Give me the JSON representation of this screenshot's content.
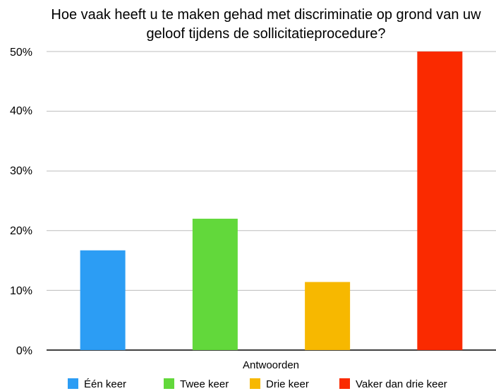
{
  "chart_data": {
    "type": "bar",
    "title_lines": [
      "Hoe vaak heeft u te maken gehad met discriminatie op grond van uw",
      "geloof tijdens de sollicitatieprocedure?"
    ],
    "xlabel": "Antwoorden",
    "ylabel": "",
    "ylim": [
      0,
      50
    ],
    "yticks": [
      "0%",
      "10%",
      "20%",
      "30%",
      "40%",
      "50%"
    ],
    "grid": true,
    "legend_position": "bottom",
    "series": [
      {
        "name": "Één keer",
        "value": 16.7,
        "color": "#2C9DF4"
      },
      {
        "name": "Twee keer",
        "value": 22.0,
        "color": "#62D83B"
      },
      {
        "name": "Drie keer",
        "value": 11.4,
        "color": "#F7B800"
      },
      {
        "name": "Vaker dan drie keer",
        "value": 50.0,
        "color": "#FA2A00"
      }
    ]
  }
}
